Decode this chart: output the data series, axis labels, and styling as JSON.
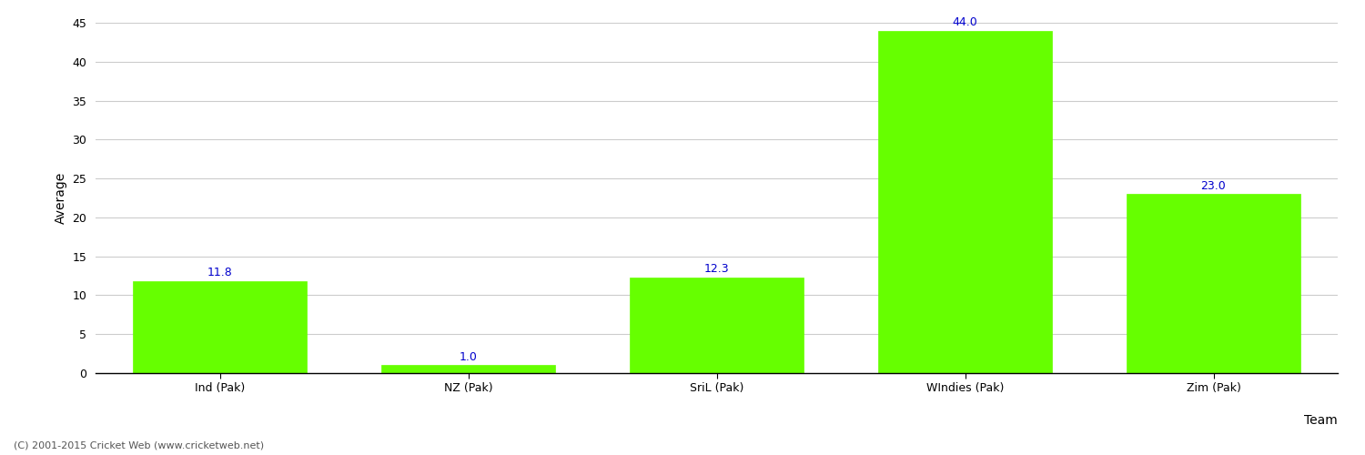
{
  "categories": [
    "Ind (Pak)",
    "NZ (Pak)",
    "SriL (Pak)",
    "WIndies (Pak)",
    "Zim (Pak)"
  ],
  "values": [
    11.8,
    1.0,
    12.3,
    44.0,
    23.0
  ],
  "bar_color": "#66ff00",
  "bar_edgecolor": "#66ff00",
  "xlabel": "Team",
  "ylabel": "Average",
  "ylim": [
    0,
    45
  ],
  "yticks": [
    0,
    5,
    10,
    15,
    20,
    25,
    30,
    35,
    40,
    45
  ],
  "annotation_color": "#0000cc",
  "annotation_fontsize": 9,
  "axis_label_fontsize": 10,
  "tick_fontsize": 9,
  "grid_color": "#cccccc",
  "background_color": "#ffffff",
  "footer_text": "(C) 2001-2015 Cricket Web (www.cricketweb.net)",
  "footer_fontsize": 8,
  "footer_color": "#555555"
}
